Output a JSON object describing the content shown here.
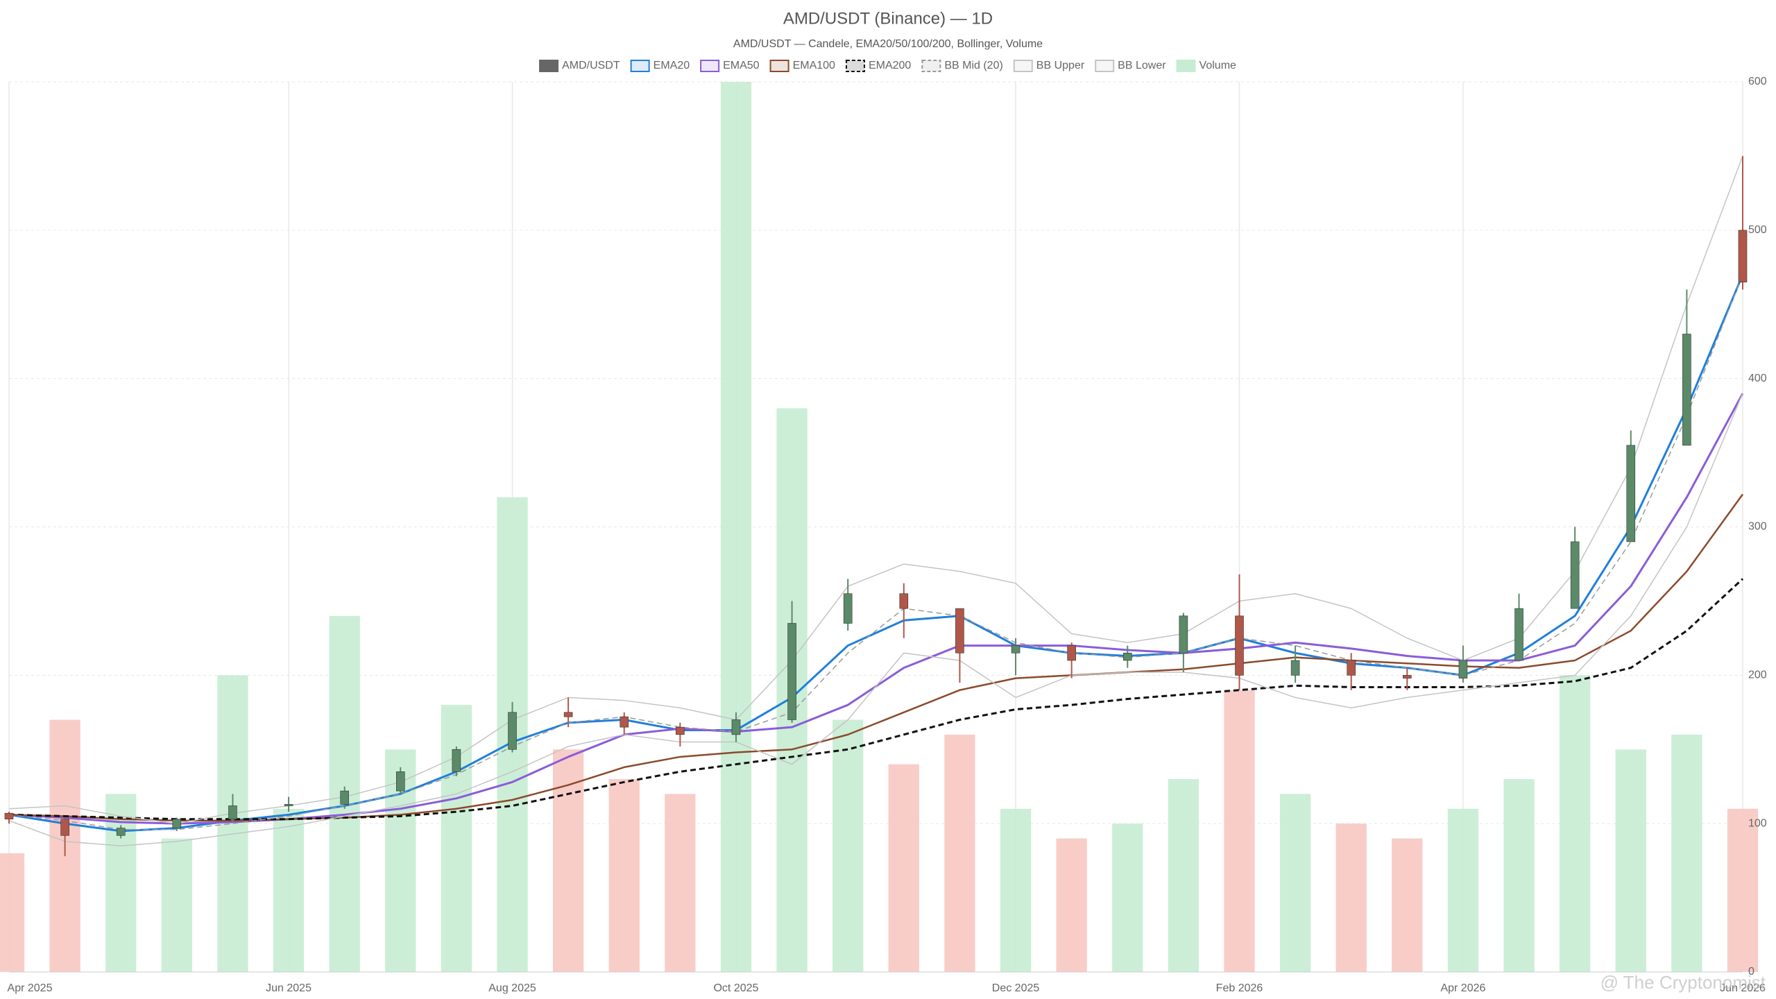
{
  "chart_data": {
    "type": "candlestick",
    "title": "AMD/USDT (Binance) — 1D",
    "subtitle": "AMD/USDT — Candele, EMA20/50/100/200, Bollinger, Volume",
    "watermark": "@ The Cryptonomist",
    "grid": true,
    "y_axis_side": "right",
    "categories": [
      "Apr 2025",
      null,
      null,
      null,
      null,
      "Jun 2025",
      null,
      null,
      null,
      "Aug 2025",
      null,
      null,
      null,
      "Oct 2025",
      null,
      null,
      null,
      null,
      "Dec 2025",
      null,
      null,
      null,
      "Feb 2026",
      null,
      null,
      null,
      "Apr 2026",
      null,
      null,
      null,
      null,
      "Jun 2026"
    ],
    "ylim": [
      0,
      600
    ],
    "yticks": [
      0,
      100,
      200,
      300,
      400,
      500,
      600
    ],
    "ohlc": {
      "name": "AMD/USDT",
      "color": "#666666",
      "up_color": "#5b8a69",
      "down_color": "#b0574a",
      "open": [
        107,
        103,
        92,
        97,
        103,
        112,
        113,
        122,
        135,
        150,
        175,
        172,
        165,
        160,
        170,
        235,
        255,
        245,
        215,
        220,
        210,
        215,
        240,
        200,
        210,
        200,
        198,
        210,
        245,
        290,
        355,
        500
      ],
      "high": [
        108,
        104,
        99,
        104,
        120,
        118,
        125,
        138,
        152,
        182,
        185,
        175,
        168,
        175,
        250,
        265,
        262,
        245,
        225,
        222,
        220,
        242,
        268,
        220,
        215,
        205,
        220,
        255,
        300,
        365,
        460,
        550
      ],
      "low": [
        100,
        78,
        90,
        95,
        101,
        108,
        110,
        120,
        132,
        148,
        165,
        160,
        152,
        155,
        168,
        230,
        225,
        195,
        200,
        198,
        205,
        202,
        190,
        195,
        190,
        190,
        195,
        215,
        250,
        295,
        400,
        460
      ],
      "close": [
        103,
        92,
        97,
        103,
        112,
        113,
        122,
        135,
        150,
        175,
        172,
        165,
        160,
        170,
        235,
        255,
        245,
        215,
        220,
        210,
        215,
        240,
        200,
        210,
        200,
        198,
        210,
        245,
        290,
        355,
        430,
        465
      ]
    },
    "volume": {
      "name": "Volume",
      "up_color": "#c6ecd3",
      "down_color": "#f7c8c2",
      "values": [
        80,
        170,
        120,
        90,
        200,
        110,
        240,
        150,
        180,
        320,
        150,
        130,
        120,
        600,
        380,
        170,
        140,
        160,
        110,
        90,
        100,
        130,
        190,
        120,
        100,
        90,
        110,
        130,
        200,
        150,
        160,
        110
      ]
    },
    "series": [
      {
        "name": "EMA20",
        "color": "#1f7fdb",
        "dash": false,
        "width": 3,
        "values": [
          106,
          100,
          95,
          97,
          102,
          106,
          112,
          120,
          135,
          155,
          168,
          170,
          163,
          163,
          185,
          220,
          237,
          240,
          220,
          215,
          213,
          215,
          225,
          215,
          208,
          205,
          200,
          215,
          240,
          300,
          380,
          470
        ]
      },
      {
        "name": "EMA50",
        "color": "#8a5cd8",
        "dash": false,
        "width": 3,
        "values": [
          106,
          104,
          101,
          100,
          101,
          103,
          106,
          110,
          117,
          128,
          145,
          160,
          164,
          162,
          165,
          180,
          205,
          220,
          220,
          220,
          217,
          215,
          218,
          222,
          218,
          213,
          210,
          210,
          220,
          260,
          320,
          390
        ]
      },
      {
        "name": "EMA100",
        "color": "#8b4a2b",
        "dash": false,
        "width": 2.5,
        "values": [
          106,
          105,
          103,
          102,
          102,
          103,
          104,
          106,
          110,
          116,
          126,
          138,
          145,
          148,
          150,
          160,
          175,
          190,
          198,
          200,
          202,
          204,
          208,
          212,
          210,
          208,
          206,
          205,
          210,
          230,
          270,
          322
        ]
      },
      {
        "name": "EMA200",
        "color": "#111111",
        "dash": true,
        "width": 3,
        "values": [
          106,
          105,
          104,
          103,
          103,
          103,
          104,
          105,
          108,
          112,
          120,
          128,
          135,
          140,
          145,
          150,
          160,
          170,
          177,
          180,
          184,
          187,
          190,
          193,
          192,
          192,
          192,
          193,
          196,
          205,
          230,
          265
        ]
      },
      {
        "name": "BB Mid (20)",
        "color": "#999999",
        "dash": true,
        "width": 1.5,
        "values": [
          106,
          102,
          96,
          96,
          100,
          105,
          112,
          120,
          133,
          152,
          168,
          172,
          165,
          162,
          175,
          215,
          245,
          240,
          222,
          215,
          212,
          215,
          225,
          220,
          210,
          205,
          200,
          210,
          235,
          290,
          375,
          470
        ]
      },
      {
        "name": "BB Upper",
        "color": "#c4c4c4",
        "dash": false,
        "width": 1.5,
        "values": [
          110,
          112,
          105,
          100,
          107,
          112,
          118,
          128,
          145,
          170,
          185,
          183,
          178,
          170,
          210,
          260,
          275,
          270,
          262,
          228,
          222,
          228,
          250,
          255,
          245,
          225,
          210,
          225,
          270,
          340,
          450,
          550
        ]
      },
      {
        "name": "BB Lower",
        "color": "#c4c4c4",
        "dash": false,
        "width": 1.5,
        "values": [
          102,
          88,
          85,
          88,
          93,
          98,
          105,
          112,
          120,
          135,
          152,
          160,
          155,
          155,
          140,
          170,
          215,
          210,
          185,
          200,
          202,
          202,
          198,
          185,
          178,
          185,
          190,
          195,
          200,
          240,
          300,
          390
        ]
      }
    ]
  }
}
